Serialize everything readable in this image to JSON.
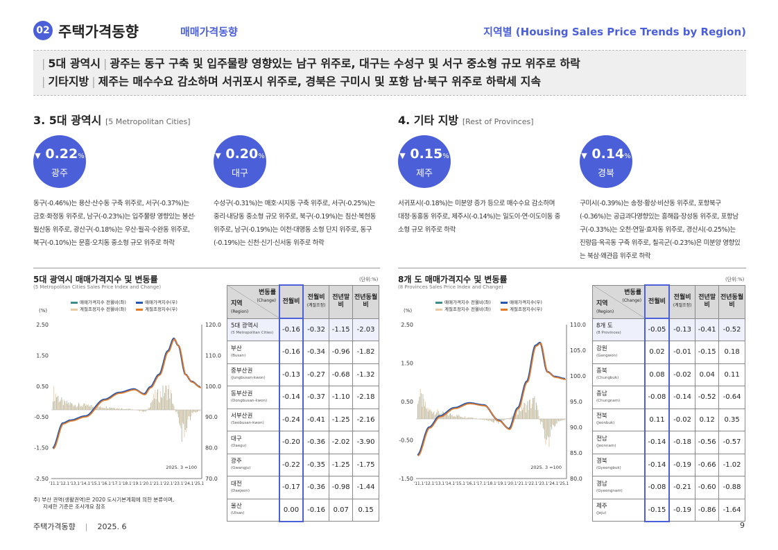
{
  "header": {
    "section_number": "02",
    "title": "주택가격동향",
    "subtitle": "매매가격동향",
    "right_title": "지역별 (Housing Sales Price Trends by Region)"
  },
  "summary": [
    {
      "tag": "5대 광역시",
      "text": "광주는 동구 구축 및 입주물량 영향있는 남구 위주로, 대구는 수성구 및 서구 중소형 규모 위주로 하락"
    },
    {
      "tag": "기타지방",
      "text": "제주는 매수수요 감소하며 서귀포시 위주로, 경북은 구미시 및 포항 남·북구 위주로 하락세 지속"
    }
  ],
  "left": {
    "title": "3. 5대 광역시",
    "title_en": "[5 Metropolitan Cities]",
    "bubbles": [
      {
        "value": "0.22",
        "unit": "%",
        "name": "광주",
        "desc": "동구(-0.46%)는 용산·산수동 구축 위주로, 서구(-0.37%)는 금호·화정동 위주로, 남구(-0.23%)는 입주물량 영향있는 봉선·월산동 위주로, 광산구(-0.18%)는 우산·월곡·수완동 위주로, 북구(-0.10%)는 문흥·오치동 중소형 규모 위주로 하락"
      },
      {
        "value": "0.20",
        "unit": "%",
        "name": "대구",
        "desc": "수성구(-0.31%)는 매호·시지동 구축 위주로, 서구(-0.25%)는 중리·내당동 중소형 규모 위주로, 북구(-0.19%)는 침산·복현동 위주로, 남구(-0.19%)는 이천·대명동 소형 단지 위주로, 동구(-0.19%)는 신천·신기·신서동 위주로 하락"
      }
    ],
    "chart": {
      "title": "5대 광역시 매매가격지수 및 변동률",
      "subtitle": "(5 Metropolitan Cities Sales Price Index and Change)",
      "unit": "(단위:%)",
      "y_left_label": "(%)",
      "legend": [
        "매매가격지수 전월비(좌)",
        "매매가격지수(우)",
        "계절조정지수 전월비(좌)",
        "계절조정지수(우)"
      ],
      "left_ticks": [
        "2.50",
        "1.50",
        "0.50",
        "-0.50",
        "-1.50",
        "-2.50"
      ],
      "right_ticks": [
        "120.0",
        "110.0",
        "100.0",
        "90.0",
        "80.0",
        "70.0"
      ],
      "x_ticks": [
        "'11.1",
        "'12.1",
        "'13.1",
        "'14.1",
        "'15.1",
        "'16.1",
        "'17.1",
        "'18.1",
        "'19.1",
        "'20.1",
        "'21.1",
        "'22.1",
        "'23.1",
        "'24.1",
        "'25.1"
      ],
      "base_note": "2025. 3 =100"
    },
    "table": {
      "h_change": "변동률",
      "h_change_en": "(Change)",
      "h_region": "지역",
      "h_region_en": "(Region)",
      "h_mom": "전월비",
      "h_mom_sa": "전월비",
      "h_mom_sa_en": "(계절조정)",
      "h_yoy": "전년말비",
      "h_yoy_same": "전년동월비",
      "rows": [
        {
          "name": "5대 광역시",
          "en": "(5 Metropolitan Cities)",
          "v": [
            "-0.16",
            "-0.32",
            "-1.15",
            "-2.03"
          ]
        },
        {
          "name": "부산",
          "en": "(Busan)",
          "v": [
            "-0.16",
            "-0.34",
            "-0.96",
            "-1.82"
          ]
        },
        {
          "name": "중부산권",
          "en": "(Jungbusan-kwon)",
          "v": [
            "-0.13",
            "-0.27",
            "-0.68",
            "-1.32"
          ]
        },
        {
          "name": "동부산권",
          "en": "(Dongbusan-kwon)",
          "v": [
            "-0.14",
            "-0.37",
            "-1.10",
            "-2.18"
          ]
        },
        {
          "name": "서부산권",
          "en": "(Seobusan-kwon)",
          "v": [
            "-0.24",
            "-0.41",
            "-1.25",
            "-2.16"
          ]
        },
        {
          "name": "대구",
          "en": "(Daegu)",
          "v": [
            "-0.20",
            "-0.36",
            "-2.02",
            "-3.90"
          ]
        },
        {
          "name": "광주",
          "en": "(Gwangju)",
          "v": [
            "-0.22",
            "-0.35",
            "-1.25",
            "-1.75"
          ]
        },
        {
          "name": "대전",
          "en": "(Daejeon)",
          "v": [
            "-0.17",
            "-0.36",
            "-0.98",
            "-1.44"
          ]
        },
        {
          "name": "울산",
          "en": "(Ulsan)",
          "v": [
            "0.00",
            "-0.16",
            "0.07",
            "0.15"
          ]
        }
      ]
    },
    "note_1": "주) 부산 권역(생활권역)은 2020 도시기본계획에 의한 분류이며,",
    "note_2": "자세한 기준은 조사개요 참조"
  },
  "right": {
    "title": "4. 기타 지방",
    "title_en": "[Rest of Provinces]",
    "bubbles": [
      {
        "value": "0.15",
        "unit": "%",
        "name": "제주",
        "desc": "서귀포시(-0.18%)는 미분양 증가 등으로 매수수요 감소하며 대정·동홍동 위주로, 제주시(-0.14%)는 일도이·연·이도이동 중소형 규모 위주로 하락"
      },
      {
        "value": "0.14",
        "unit": "%",
        "name": "경북",
        "desc": "구미시(-0.39%)는 송정·황상·비산동 위주로, 포항북구(-0.36%)는 공급과다영향있는 흥해읍·장성동 위주로, 포항남구(-0.33%)는 오천·연일·효자동 위주로, 경산시(-0.25%)는 진량읍·옥곡동 구축 위주로, 칠곡군(-0.23%)은 미분양 영향있는 북삼·왜관읍 위주로 하락"
      }
    ],
    "chart": {
      "title": "8개 도 매매가격지수 및 변동률",
      "subtitle": "(8 Provinces Sales Price Index and Change)",
      "unit": "(단위:%)",
      "y_left_label": "(%)",
      "legend": [
        "매매가격지수 전월비(좌)",
        "매매가격지수(우)",
        "계절조정지수 전월비(좌)",
        "계절조정지수(우)"
      ],
      "left_ticks": [
        "2.50",
        "1.50",
        "0.50",
        "-0.50",
        "-1.50"
      ],
      "right_ticks": [
        "110.0",
        "105.0",
        "100.0",
        "95.0",
        "90.0",
        "85.0",
        "80.0"
      ],
      "x_ticks": [
        "'11.1",
        "'12.1",
        "'13.1",
        "'14.1",
        "'15.1",
        "'16.1",
        "'17.1",
        "'18.1",
        "'19.1",
        "'20.1",
        "'21.1",
        "'22.1",
        "'23.1",
        "'24.1",
        "'25.1"
      ],
      "base_note": "2025. 3 =100"
    },
    "table": {
      "h_change": "변동률",
      "h_change_en": "(Change)",
      "h_region": "지역",
      "h_region_en": "(Region)",
      "h_mom": "전월비",
      "h_mom_sa": "전월비",
      "h_mom_sa_en": "(계절조정)",
      "h_yoy": "전년말비",
      "h_yoy_same": "전년동월비",
      "rows": [
        {
          "name": "8개 도",
          "en": "(8 Provinces)",
          "v": [
            "-0.05",
            "-0.13",
            "-0.41",
            "-0.52"
          ]
        },
        {
          "name": "강원",
          "en": "(Gangwon)",
          "v": [
            "0.02",
            "-0.01",
            "-0.15",
            "0.18"
          ]
        },
        {
          "name": "충북",
          "en": "(Chungbuk)",
          "v": [
            "0.08",
            "-0.02",
            "0.04",
            "0.11"
          ]
        },
        {
          "name": "충남",
          "en": "(Chungnam)",
          "v": [
            "-0.08",
            "-0.14",
            "-0.52",
            "-0.64"
          ]
        },
        {
          "name": "전북",
          "en": "(Jeonbuk)",
          "v": [
            "0.11",
            "-0.02",
            "0.12",
            "0.35"
          ]
        },
        {
          "name": "전남",
          "en": "(Jeonnam)",
          "v": [
            "-0.14",
            "-0.18",
            "-0.56",
            "-0.57"
          ]
        },
        {
          "name": "경북",
          "en": "(Gyeongbuk)",
          "v": [
            "-0.14",
            "-0.19",
            "-0.66",
            "-1.02"
          ]
        },
        {
          "name": "경남",
          "en": "(Gyeongnam)",
          "v": [
            "-0.08",
            "-0.21",
            "-0.60",
            "-0.88"
          ]
        },
        {
          "name": "제주",
          "en": "(Jeju)",
          "v": [
            "-0.15",
            "-0.19",
            "-0.86",
            "-1.64"
          ]
        }
      ]
    }
  },
  "footer": {
    "doc_title": "주택가격동향",
    "sep": "|",
    "date": "2025. 6",
    "page": "9"
  },
  "colors": {
    "accent": "#4a5fd8",
    "index_line": "#2456b0",
    "sa_index_line": "#e07b2a",
    "mom_bar": "#a9b8a9",
    "sa_mom_bar": "#e8c9a4",
    "legend_teal": "#3c8c8c"
  }
}
